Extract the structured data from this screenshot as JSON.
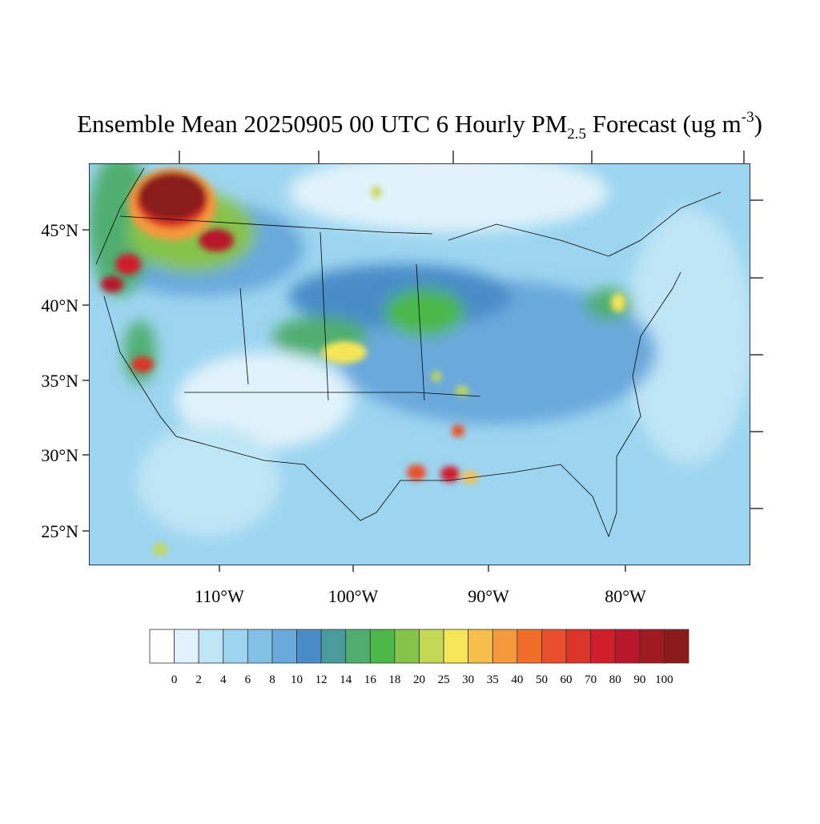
{
  "title": {
    "main": "Ensemble Mean 20250905 00 UTC 6 Hourly PM",
    "subscript": "2.5",
    "middle": " Forecast (ug m",
    "superscript": "-3",
    "end": ")"
  },
  "map": {
    "lat_labels": [
      "45°N",
      "40°N",
      "35°N",
      "30°N",
      "25°N"
    ],
    "lon_labels": [
      "110°W",
      "100°W",
      "90°W",
      "80°W"
    ]
  },
  "colorbar": {
    "levels": [
      0,
      2,
      4,
      6,
      8,
      10,
      12,
      14,
      16,
      18,
      20,
      25,
      30,
      35,
      40,
      50,
      60,
      70,
      80,
      90,
      100
    ],
    "colors": [
      "#ffffff",
      "#e0f3fb",
      "#bfe5f6",
      "#9dd5f0",
      "#83c0e6",
      "#6aa9dc",
      "#4a8cc8",
      "#4a9c9c",
      "#4fae6f",
      "#4cb84a",
      "#86c34b",
      "#c3d856",
      "#f5e659",
      "#f6bf4b",
      "#f4993c",
      "#f06e2a",
      "#e84f2a",
      "#dc3428",
      "#d01e2a",
      "#b8182a",
      "#a01a22",
      "#8b1a1a"
    ]
  }
}
